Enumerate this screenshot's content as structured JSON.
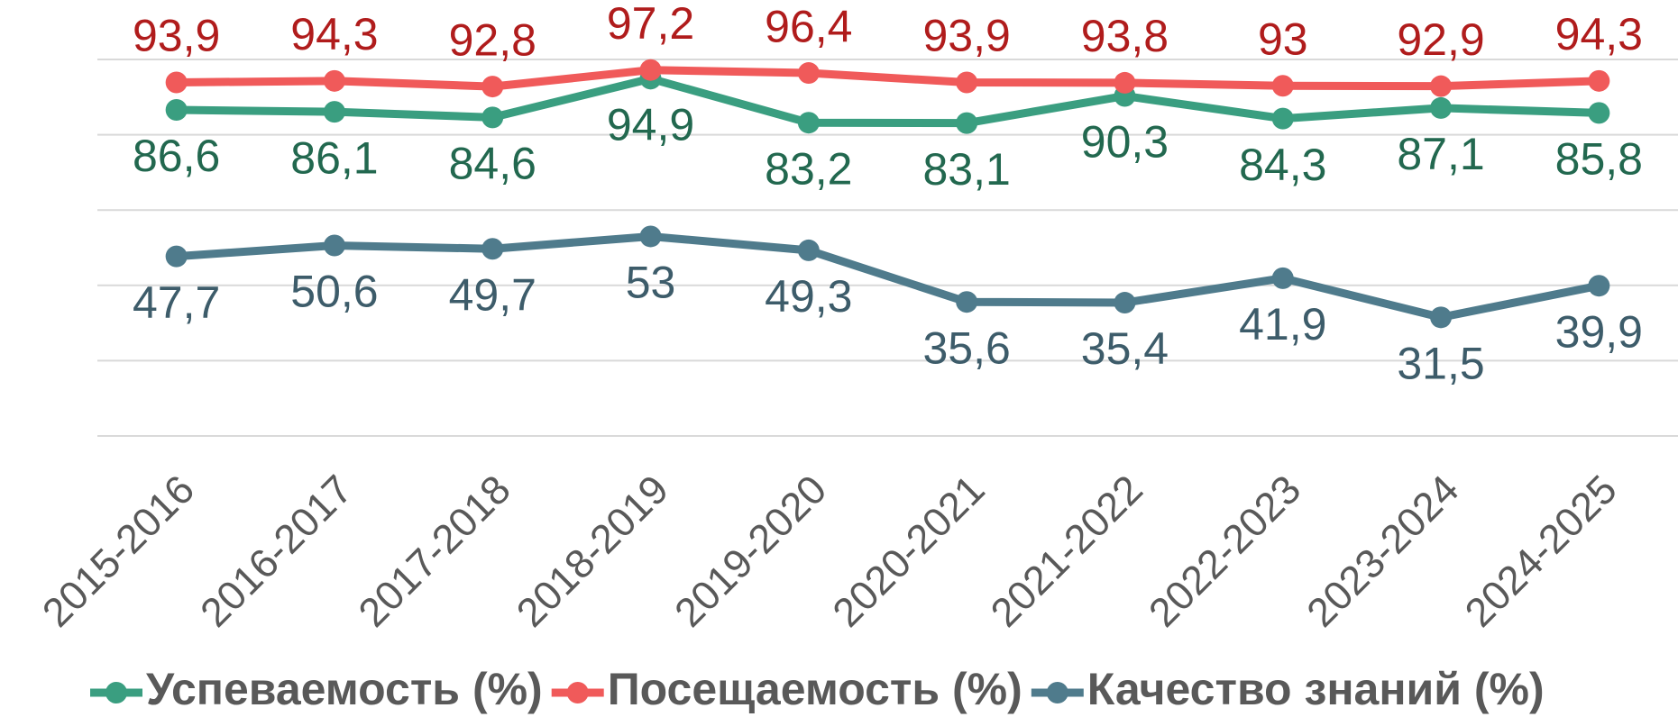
{
  "chart_data": {
    "type": "line",
    "categories": [
      "2015-2016",
      "2016-2017",
      "2017-2018",
      "2018-2019",
      "2019-2020",
      "2020-2021",
      "2021-2022",
      "2022-2023",
      "2023-2024",
      "2024-2025"
    ],
    "series": [
      {
        "name": "Успеваемость (%)",
        "color": "#3a9e80",
        "label_color": "#22684f",
        "label_position": "below",
        "values": [
          86.6,
          86.1,
          84.6,
          94.9,
          83.2,
          83.1,
          90.3,
          84.3,
          87.1,
          85.8
        ],
        "value_labels": [
          "86,6",
          "86,1",
          "84,6",
          "94,9",
          "83,2",
          "83,1",
          "90,3",
          "84,3",
          "87,1",
          "85,8"
        ]
      },
      {
        "name": "Посещаемость (%)",
        "color": "#f05a5a",
        "label_color": "#b01c1c",
        "label_position": "above",
        "values": [
          93.9,
          94.3,
          92.8,
          97.2,
          96.4,
          93.9,
          93.8,
          93,
          92.9,
          94.3
        ],
        "value_labels": [
          "93,9",
          "94,3",
          "92,8",
          "97,2",
          "96,4",
          "93,9",
          "93,8",
          "93",
          "92,9",
          "94,3"
        ]
      },
      {
        "name": "Качество знаний (%)",
        "color": "#4f7b8c",
        "label_color": "#3d5c6a",
        "label_position": "below",
        "values": [
          47.7,
          50.6,
          49.7,
          53,
          49.3,
          35.6,
          35.4,
          41.9,
          31.5,
          39.9
        ],
        "value_labels": [
          "47,7",
          "50,6",
          "49,7",
          "53",
          "49,3",
          "35,6",
          "35,4",
          "41,9",
          "31,5",
          "39,9"
        ]
      }
    ],
    "ylim": [
      0,
      100
    ],
    "yticks": [
      0,
      20,
      40,
      60,
      80,
      100
    ],
    "grid": true,
    "legend": "bottom"
  }
}
